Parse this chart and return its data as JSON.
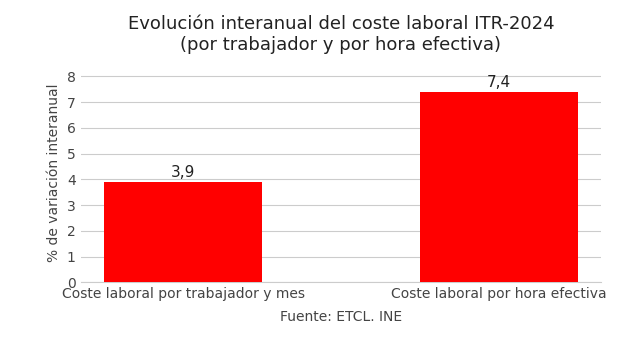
{
  "title_line1": "Evolución interanual del coste laboral ITR-2024",
  "title_line2": "(por trabajador y por hora efectiva)",
  "categories": [
    "Coste laboral por trabajador y mes",
    "Coste laboral por hora efectiva"
  ],
  "values": [
    3.9,
    7.4
  ],
  "bar_color": "#ff0000",
  "ylabel": "% de variación interanual",
  "xlabel": "Fuente: ETCL. INE",
  "ylim": [
    0,
    8.5
  ],
  "yticks": [
    0,
    1,
    2,
    3,
    4,
    5,
    6,
    7,
    8
  ],
  "bar_labels": [
    "3,9",
    "7,4"
  ],
  "background_color": "#ffffff",
  "grid_color": "#cccccc",
  "title_fontsize": 13,
  "label_fontsize": 10,
  "tick_fontsize": 10,
  "bar_label_fontsize": 11,
  "xlabel_fontsize": 10,
  "bar_width": 0.5
}
